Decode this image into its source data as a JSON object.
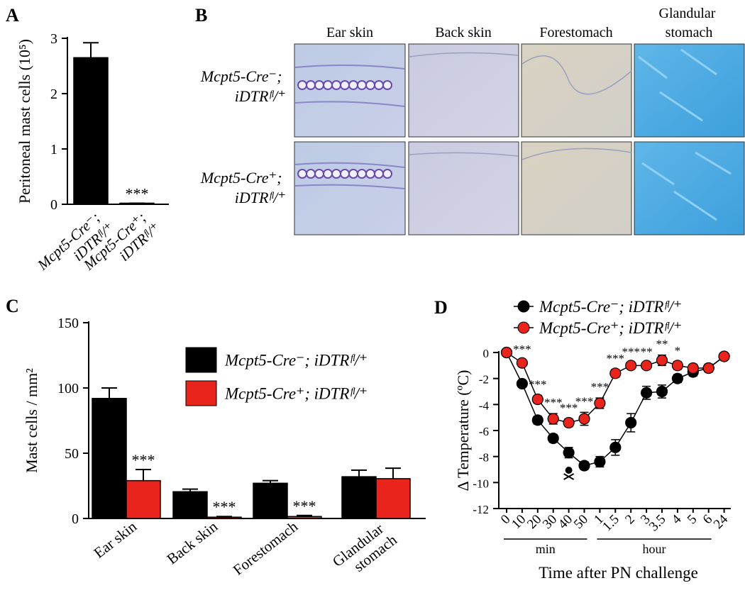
{
  "chart_data": [
    {
      "type": "bar",
      "panel": "A",
      "categories": [
        "Mcpt5-Cre⁻; iDTRᶠˡ/⁺",
        "Mcpt5-Cre⁺; iDTRᶠˡ/⁺"
      ],
      "values": [
        2.65,
        0.02
      ],
      "errors": [
        0.27,
        0
      ],
      "significance": [
        null,
        "***"
      ],
      "color": "#000000",
      "ylabel": "Peritoneal mast cells (10⁵)",
      "ylim": [
        0,
        3
      ],
      "yticks": [
        0,
        1,
        2,
        3
      ]
    },
    {
      "type": "bar",
      "panel": "C",
      "categories": [
        "Ear skin",
        "Back skin",
        "Forestomach",
        "Glandular stomach"
      ],
      "series": [
        {
          "name": "Mcpt5-Cre⁻; iDTRᶠˡ/⁺",
          "color": "#000000",
          "values": [
            92,
            20.5,
            27,
            32
          ],
          "errors": [
            8,
            2,
            2,
            5
          ],
          "significance": [
            null,
            null,
            null,
            null
          ]
        },
        {
          "name": "Mcpt5-Cre⁺; iDTRᶠˡ/⁺",
          "color": "#e8241c",
          "values": [
            29,
            1,
            1.5,
            30.5
          ],
          "errors": [
            8.5,
            0.5,
            0.8,
            8
          ],
          "significance": [
            "***",
            "***",
            "***",
            null
          ]
        }
      ],
      "ylabel": "Mast cells / mm²",
      "ylim": [
        0,
        150
      ],
      "yticks": [
        0,
        50,
        100,
        150
      ]
    },
    {
      "type": "line",
      "panel": "D",
      "categories": [
        "0",
        "10",
        "20",
        "30",
        "40",
        "50",
        "1",
        "1.5",
        "2",
        "3",
        "3.5",
        "4",
        "5",
        "6",
        "24"
      ],
      "x_group_labels": [
        "min",
        "hour"
      ],
      "series": [
        {
          "name": "Mcpt5-Cre⁻; iDTRᶠˡ/⁺",
          "color": "#000000",
          "values": [
            0,
            -2.4,
            -5.2,
            -6.6,
            -7.7,
            -8.7,
            -8.4,
            -7.3,
            -5.4,
            -3.1,
            -3.0,
            -2.0,
            -1.5,
            -1.2,
            -0.3
          ],
          "errors": [
            0,
            0.2,
            0.3,
            0.3,
            0.4,
            0.3,
            0.4,
            0.6,
            0.7,
            0.5,
            0.5,
            0.3,
            0.3,
            0.3,
            0.2
          ]
        },
        {
          "name": "Mcpt5-Cre⁺; iDTRᶠˡ/⁺",
          "color": "#e8241c",
          "values": [
            0,
            -0.8,
            -3.6,
            -5.1,
            -5.4,
            -5.1,
            -3.9,
            -1.6,
            -1.0,
            -1.0,
            -0.6,
            -1.0,
            -1.2,
            -1.2,
            -0.3
          ],
          "errors": [
            0,
            0.2,
            0.3,
            0.4,
            0.3,
            0.5,
            0.4,
            0.3,
            0.2,
            0.2,
            0.4,
            0.3,
            0.3,
            0.3,
            0.2
          ],
          "significance": [
            null,
            "***",
            "***",
            "***",
            "***",
            "***",
            "***",
            "***",
            "***",
            "**",
            "**",
            "*",
            null,
            null,
            null
          ]
        }
      ],
      "xlabel": "Time after PN challenge",
      "ylabel": "Δ Temperature (ºC)",
      "ylim": [
        -12,
        0
      ],
      "yticks": [
        0,
        -2,
        -4,
        -6,
        -8,
        -10,
        -12
      ]
    }
  ],
  "micrographs": {
    "panel": "B",
    "columns": [
      "Ear skin",
      "Back skin",
      "Forestomach",
      "Glandular stomach"
    ],
    "rows": [
      "Mcpt5-Cre⁻; iDTRᶠˡ/⁺",
      "Mcpt5-Cre⁺; iDTRᶠˡ/⁺"
    ]
  }
}
